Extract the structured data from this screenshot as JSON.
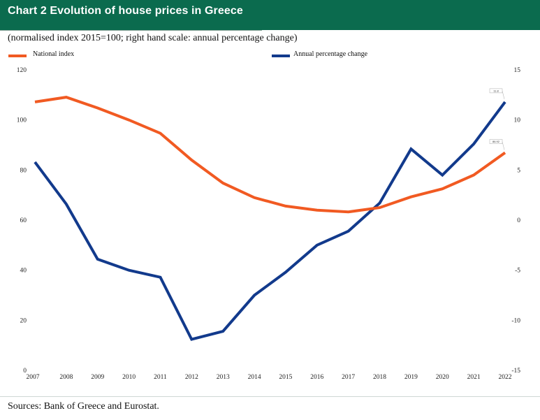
{
  "header": {
    "title": "Chart 2 Evolution of house prices in Greece",
    "subtitle": "(normalised index 2015=100; right hand scale: annual percentage change)"
  },
  "footer": {
    "source": "Sources: Bank of Greece and Eurostat."
  },
  "chart_data": {
    "type": "line",
    "title": "Chart 2 Evolution of house prices in Greece",
    "subtitle": "(normalised index 2015=100; right hand scale: annual percentage change)",
    "xlabel": "",
    "ylabel": "",
    "x": [
      "2007",
      "2008",
      "2009",
      "2010",
      "2011",
      "2012",
      "2013",
      "2014",
      "2015",
      "2016",
      "2017",
      "2018",
      "2019",
      "2020",
      "2021",
      "2022"
    ],
    "ylim": [
      0,
      120
    ],
    "yticks": [
      "0",
      "20",
      "40",
      "60",
      "80",
      "100",
      "120"
    ],
    "y2lim": [
      -15,
      15
    ],
    "y2ticks": [
      "-15",
      "-10",
      "-5",
      "0",
      "5",
      "10",
      "15"
    ],
    "grid": false,
    "legend_position": "top",
    "series": [
      {
        "name": "National index",
        "axis": "left",
        "color": "#f15a22",
        "values": [
          107.2,
          109.1,
          104.8,
          100.0,
          94.7,
          84.0,
          74.8,
          69.0,
          65.6,
          64.0,
          63.3,
          65.0,
          69.3,
          72.5,
          78.0,
          86.92
        ]
      },
      {
        "name": "Annual percentage change",
        "axis": "right",
        "color": "#123a8c",
        "values": [
          5.8,
          1.6,
          -3.9,
          -5.0,
          -5.7,
          -11.9,
          -11.1,
          -7.5,
          -5.2,
          -2.5,
          -1.1,
          1.7,
          7.1,
          4.5,
          7.6,
          11.8
        ]
      }
    ],
    "annotations": [
      {
        "series": "Annual percentage change",
        "x": "2022",
        "text": "11.8"
      },
      {
        "series": "National index",
        "x": "2022",
        "text": "86.92"
      }
    ]
  }
}
